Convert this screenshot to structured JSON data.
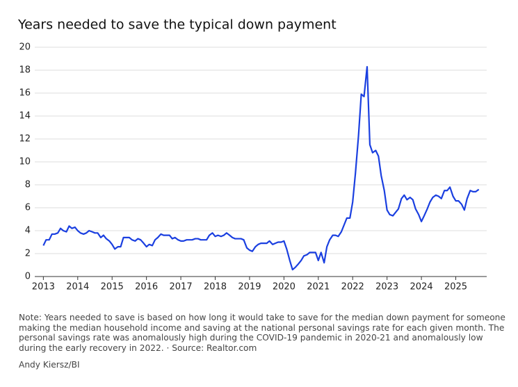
{
  "chart_data": {
    "type": "line",
    "title": "Years needed to save the typical down payment",
    "note": [
      "Note: Years needed to save is based on how long it would take to save for the median down payment for someone",
      "making the median household income and saving at the national personal savings rate for each given month. The",
      "personal savings rate was anomalously high during the COVID-19 pandemic in 2020-21 and anomalously low",
      "during the early recovery in 2022.  ·  Source: Realtor.com"
    ],
    "credit": "Andy Kiersz/BI",
    "grid": true,
    "xlim": [
      2012.75,
      2025.9
    ],
    "ylim": [
      0,
      20
    ],
    "xticks": [
      2013,
      2014,
      2015,
      2016,
      2017,
      2018,
      2019,
      2020,
      2021,
      2022,
      2023,
      2024,
      2025
    ],
    "yticks": [
      0,
      2,
      4,
      6,
      8,
      10,
      12,
      14,
      16,
      18,
      20
    ],
    "series": [
      {
        "color": "#1a3fe0",
        "x": [
          2013.0,
          2013.08,
          2013.17,
          2013.25,
          2013.33,
          2013.42,
          2013.5,
          2013.58,
          2013.67,
          2013.75,
          2013.83,
          2013.92,
          2014.0,
          2014.08,
          2014.17,
          2014.25,
          2014.33,
          2014.42,
          2014.5,
          2014.58,
          2014.67,
          2014.75,
          2014.83,
          2014.92,
          2015.0,
          2015.08,
          2015.17,
          2015.25,
          2015.33,
          2015.42,
          2015.5,
          2015.58,
          2015.67,
          2015.75,
          2015.83,
          2015.92,
          2016.0,
          2016.08,
          2016.17,
          2016.25,
          2016.33,
          2016.42,
          2016.5,
          2016.58,
          2016.67,
          2016.75,
          2016.83,
          2016.92,
          2017.0,
          2017.08,
          2017.17,
          2017.25,
          2017.33,
          2017.42,
          2017.5,
          2017.58,
          2017.67,
          2017.75,
          2017.83,
          2017.92,
          2018.0,
          2018.08,
          2018.17,
          2018.25,
          2018.33,
          2018.42,
          2018.5,
          2018.58,
          2018.67,
          2018.75,
          2018.83,
          2018.92,
          2019.0,
          2019.08,
          2019.17,
          2019.25,
          2019.33,
          2019.42,
          2019.5,
          2019.58,
          2019.67,
          2019.75,
          2019.83,
          2019.92,
          2020.0,
          2020.08,
          2020.17,
          2020.25,
          2020.33,
          2020.42,
          2020.5,
          2020.58,
          2020.67,
          2020.75,
          2020.83,
          2020.92,
          2021.0,
          2021.08,
          2021.17,
          2021.25,
          2021.33,
          2021.42,
          2021.5,
          2021.58,
          2021.67,
          2021.75,
          2021.83,
          2021.92,
          2022.0,
          2022.08,
          2022.17,
          2022.25,
          2022.33,
          2022.42,
          2022.5,
          2022.58,
          2022.67,
          2022.75,
          2022.83,
          2022.92,
          2023.0,
          2023.08,
          2023.17,
          2023.25,
          2023.33,
          2023.42,
          2023.5,
          2023.58,
          2023.67,
          2023.75,
          2023.83,
          2023.92,
          2024.0,
          2024.08,
          2024.17,
          2024.25,
          2024.33,
          2024.42,
          2024.5,
          2024.58,
          2024.67,
          2024.75,
          2024.83,
          2024.92,
          2025.0,
          2025.08,
          2025.17,
          2025.25,
          2025.33,
          2025.42,
          2025.5,
          2025.58,
          2025.67
        ],
        "values": [
          2.7,
          3.2,
          3.2,
          3.7,
          3.7,
          3.8,
          4.2,
          4.0,
          3.9,
          4.4,
          4.2,
          4.3,
          4.0,
          3.8,
          3.7,
          3.8,
          4.0,
          3.9,
          3.8,
          3.8,
          3.4,
          3.6,
          3.3,
          3.1,
          2.8,
          2.4,
          2.6,
          2.6,
          3.4,
          3.4,
          3.4,
          3.2,
          3.1,
          3.3,
          3.2,
          2.9,
          2.6,
          2.8,
          2.7,
          3.2,
          3.4,
          3.7,
          3.6,
          3.6,
          3.6,
          3.3,
          3.4,
          3.2,
          3.1,
          3.1,
          3.2,
          3.2,
          3.2,
          3.3,
          3.3,
          3.2,
          3.2,
          3.2,
          3.6,
          3.8,
          3.5,
          3.6,
          3.5,
          3.6,
          3.8,
          3.6,
          3.4,
          3.3,
          3.3,
          3.3,
          3.2,
          2.5,
          2.3,
          2.2,
          2.6,
          2.8,
          2.9,
          2.9,
          2.9,
          3.1,
          2.8,
          2.9,
          3.0,
          3.0,
          3.1,
          2.4,
          1.4,
          0.6,
          0.8,
          1.1,
          1.4,
          1.8,
          1.9,
          2.1,
          2.1,
          2.1,
          1.4,
          2.1,
          1.2,
          2.6,
          3.2,
          3.6,
          3.6,
          3.5,
          3.9,
          4.5,
          5.1,
          5.1,
          6.5,
          9.0,
          12.3,
          15.9,
          15.7,
          18.3,
          11.5,
          10.8,
          11.0,
          10.5,
          8.8,
          7.5,
          5.8,
          5.4,
          5.3,
          5.6,
          5.9,
          6.8,
          7.1,
          6.7,
          6.9,
          6.7,
          5.9,
          5.4,
          4.8,
          5.3,
          5.9,
          6.5,
          6.9,
          7.1,
          7.0,
          6.8,
          7.5,
          7.5,
          7.8,
          7.0,
          6.6,
          6.6,
          6.3,
          5.8,
          6.8,
          7.5,
          7.4,
          7.4,
          7.6
        ]
      }
    ]
  }
}
